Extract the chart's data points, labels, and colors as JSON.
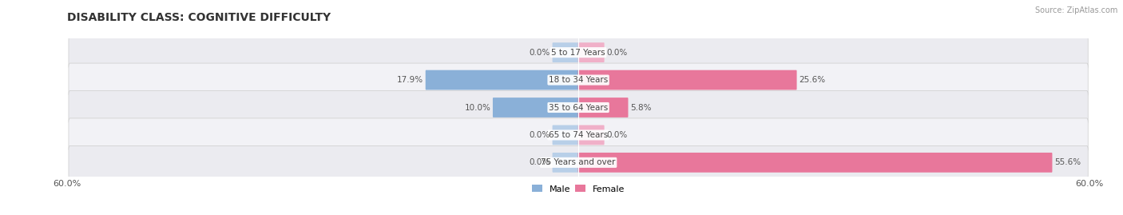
{
  "title": "DISABILITY CLASS: COGNITIVE DIFFICULTY",
  "source": "Source: ZipAtlas.com",
  "categories": [
    "5 to 17 Years",
    "18 to 34 Years",
    "35 to 64 Years",
    "65 to 74 Years",
    "75 Years and over"
  ],
  "male_values": [
    0.0,
    17.9,
    10.0,
    0.0,
    0.0
  ],
  "female_values": [
    0.0,
    25.6,
    5.8,
    0.0,
    55.6
  ],
  "max_value": 60.0,
  "male_color": "#8ab0d8",
  "male_stub_color": "#b8cfe8",
  "female_color": "#e8779b",
  "female_stub_color": "#f0b0c8",
  "row_bg_color": "#ebebf0",
  "row_alt_bg_color": "#f2f2f6",
  "title_fontsize": 10,
  "label_fontsize": 7.5,
  "value_fontsize": 7.5,
  "axis_label_fontsize": 8,
  "legend_fontsize": 8,
  "stub_size": 3.0
}
